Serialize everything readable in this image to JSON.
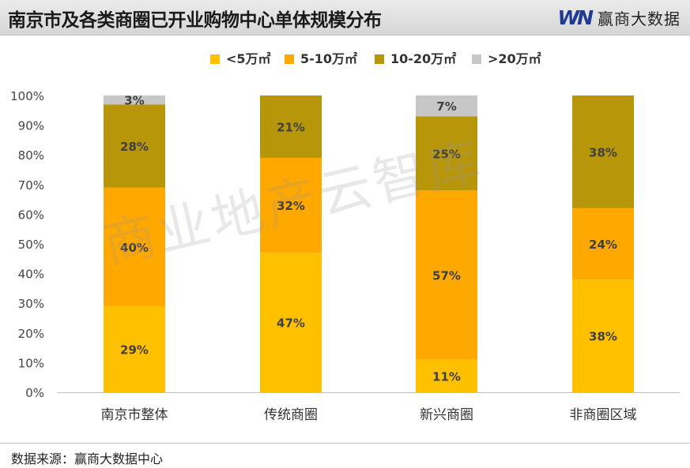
{
  "header": {
    "title": "南京市及各类商圈已开业购物中心单体规模分布",
    "brand_logo": "WN",
    "brand_name": "赢商大数据"
  },
  "watermark": "商业地产云智库",
  "source": "数据来源：赢商大数据中心",
  "colors": {
    "lt5": "#ffc000",
    "5to10": "#ffa800",
    "10to20": "#b8960a",
    "gt20": "#c7c7c7"
  },
  "chart_data": {
    "type": "bar",
    "stacked": true,
    "categories": [
      "南京市整体",
      "传统商圈",
      "新兴商圈",
      "非商圈区域"
    ],
    "series": [
      {
        "name": "<5万㎡",
        "values": [
          29,
          47,
          11,
          38
        ],
        "labels": [
          "29%",
          "47%",
          "11%",
          "38%"
        ]
      },
      {
        "name": "5-10万㎡",
        "values": [
          40,
          32,
          57,
          24
        ],
        "labels": [
          "40%",
          "32%",
          "57%",
          "24%"
        ]
      },
      {
        "name": "10-20万㎡",
        "values": [
          28,
          21,
          25,
          38
        ],
        "labels": [
          "28%",
          "21%",
          "25%",
          "38%"
        ]
      },
      {
        "name": ">20万㎡",
        "values": [
          3,
          0,
          7,
          0
        ],
        "labels": [
          "3%",
          "",
          "7%",
          ""
        ]
      }
    ],
    "y_ticks": [
      "0%",
      "10%",
      "20%",
      "30%",
      "40%",
      "50%",
      "60%",
      "70%",
      "80%",
      "90%",
      "100%"
    ],
    "ylim": [
      0,
      100
    ],
    "legend_position": "top"
  }
}
